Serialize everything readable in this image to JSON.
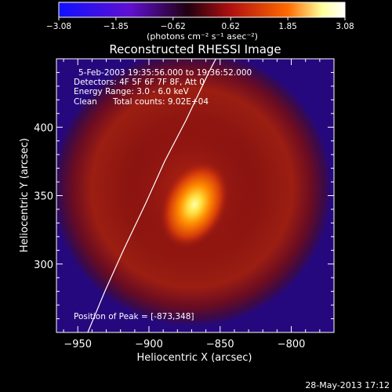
{
  "chart_data": {
    "type": "heatmap",
    "title": "Reconstructed RHESSI Image",
    "xlabel": "Heliocentric X (arcsec)",
    "ylabel": "Heliocentric Y (arcsec)",
    "xlim": [
      -965,
      -770
    ],
    "ylim": [
      250,
      450
    ],
    "xticks": [
      -950,
      -900,
      -850,
      -800
    ],
    "yticks": [
      300,
      350,
      400
    ],
    "colorbar": {
      "min": -3.08,
      "max": 3.08,
      "ticks": [
        "-3.08",
        "-1.85",
        "-0.62",
        "0.62",
        "1.85",
        "3.08"
      ],
      "unit_label": "(photons cm⁻² s⁻¹ asec⁻²)",
      "colors": [
        "#1010ff",
        "#6010d0",
        "#200010",
        "#b01010",
        "#ff6a00",
        "#ffff9a",
        "#ffffff"
      ]
    },
    "annotations": {
      "time_range": "5-Feb-2003 19:35:56.000 to 19:36:52.000",
      "detectors": "Detectors: 4F 5F 6F 7F 8F, Att 0",
      "energy_range": "Energy Range: 3.0 - 6.0 keV",
      "clean": "Clean",
      "total_counts": "Total counts: 9.02E+04",
      "peak": "Position of Peak = [-873,348]"
    },
    "peak": {
      "x": -873,
      "y": 348
    },
    "limb_curve": [
      [
        -943,
        250
      ],
      [
        -931,
        280
      ],
      [
        -918,
        310
      ],
      [
        -902,
        345
      ],
      [
        -889,
        375
      ],
      [
        -874,
        405
      ],
      [
        -858,
        440
      ],
      [
        -853,
        450
      ]
    ],
    "background_color": "#000000"
  },
  "footer": {
    "date": "28-May-2013 17:12"
  }
}
